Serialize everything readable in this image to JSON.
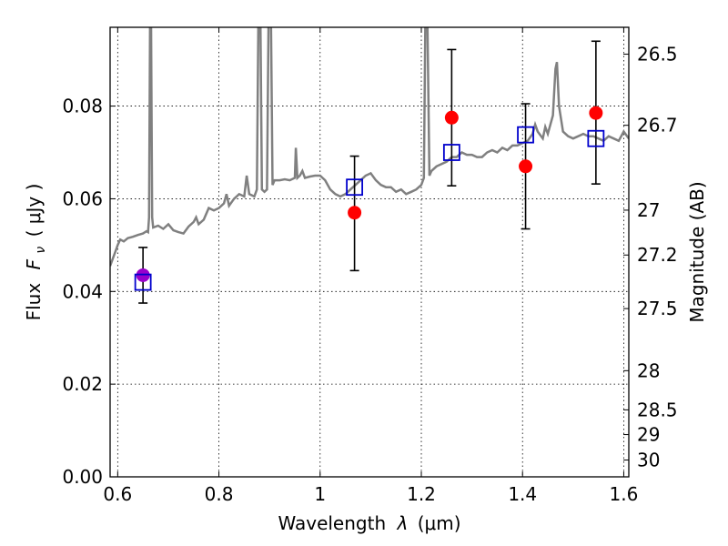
{
  "chart_data": {
    "type": "scatter",
    "xlabel_text": "Wavelength",
    "xlabel_symbol": "λ",
    "xlabel_unit": "(μm)",
    "ylabel_text": "Flux",
    "ylabel_symbol": "F",
    "ylabel_symbol_sub": "ν",
    "ylabel_unit": "( μJy )",
    "y2label": "Magnitude (AB)",
    "xlim": [
      0.585,
      1.61
    ],
    "ylim": [
      0.0,
      0.097
    ],
    "grid": true,
    "xticks": [
      {
        "value": 0.6,
        "label": "0.6"
      },
      {
        "value": 0.8,
        "label": "0.8"
      },
      {
        "value": 1.0,
        "label": "1"
      },
      {
        "value": 1.2,
        "label": "1.2"
      },
      {
        "value": 1.4,
        "label": "1.4"
      },
      {
        "value": 1.6,
        "label": "1.6"
      }
    ],
    "yticks": [
      {
        "value": 0.0,
        "label": "0.00"
      },
      {
        "value": 0.02,
        "label": "0.02"
      },
      {
        "value": 0.04,
        "label": "0.04"
      },
      {
        "value": 0.06,
        "label": "0.06"
      },
      {
        "value": 0.08,
        "label": "0.08"
      }
    ],
    "y2ticks": [
      {
        "mag": 26.5,
        "label": "26.5"
      },
      {
        "mag": 26.7,
        "label": "26.7"
      },
      {
        "mag": 27.0,
        "label": "27"
      },
      {
        "mag": 27.2,
        "label": "27.2"
      },
      {
        "mag": 27.5,
        "label": "27.5"
      },
      {
        "mag": 28.0,
        "label": "28"
      },
      {
        "mag": 28.5,
        "label": "28.5"
      },
      {
        "mag": 29.0,
        "label": "29"
      },
      {
        "mag": 30.0,
        "label": "30"
      }
    ],
    "model_spectrum": {
      "color": "#808080",
      "points": [
        [
          0.585,
          0.0455
        ],
        [
          0.595,
          0.0485
        ],
        [
          0.6,
          0.05
        ],
        [
          0.605,
          0.0512
        ],
        [
          0.612,
          0.0508
        ],
        [
          0.62,
          0.0515
        ],
        [
          0.63,
          0.0518
        ],
        [
          0.64,
          0.0522
        ],
        [
          0.65,
          0.0525
        ],
        [
          0.657,
          0.053
        ],
        [
          0.66,
          0.0528
        ],
        [
          0.662,
          0.056
        ],
        [
          0.664,
          0.098
        ],
        [
          0.666,
          0.098
        ],
        [
          0.668,
          0.056
        ],
        [
          0.67,
          0.0538
        ],
        [
          0.68,
          0.0542
        ],
        [
          0.69,
          0.0535
        ],
        [
          0.7,
          0.0545
        ],
        [
          0.71,
          0.0532
        ],
        [
          0.72,
          0.0528
        ],
        [
          0.73,
          0.0525
        ],
        [
          0.74,
          0.054
        ],
        [
          0.75,
          0.055
        ],
        [
          0.755,
          0.056
        ],
        [
          0.76,
          0.0545
        ],
        [
          0.77,
          0.0555
        ],
        [
          0.78,
          0.058
        ],
        [
          0.79,
          0.0575
        ],
        [
          0.8,
          0.058
        ],
        [
          0.81,
          0.059
        ],
        [
          0.815,
          0.061
        ],
        [
          0.82,
          0.0585
        ],
        [
          0.83,
          0.06
        ],
        [
          0.84,
          0.061
        ],
        [
          0.85,
          0.0605
        ],
        [
          0.855,
          0.065
        ],
        [
          0.86,
          0.061
        ],
        [
          0.87,
          0.0605
        ],
        [
          0.875,
          0.062
        ],
        [
          0.878,
          0.098
        ],
        [
          0.882,
          0.098
        ],
        [
          0.885,
          0.062
        ],
        [
          0.89,
          0.0615
        ],
        [
          0.895,
          0.062
        ],
        [
          0.898,
          0.098
        ],
        [
          0.903,
          0.098
        ],
        [
          0.906,
          0.063
        ],
        [
          0.91,
          0.064
        ],
        [
          0.92,
          0.064
        ],
        [
          0.93,
          0.0642
        ],
        [
          0.94,
          0.064
        ],
        [
          0.95,
          0.0645
        ],
        [
          0.952,
          0.071
        ],
        [
          0.955,
          0.0645
        ],
        [
          0.96,
          0.065
        ],
        [
          0.965,
          0.066
        ],
        [
          0.97,
          0.0645
        ],
        [
          0.98,
          0.0648
        ],
        [
          0.99,
          0.065
        ],
        [
          1.0,
          0.065
        ],
        [
          1.01,
          0.064
        ],
        [
          1.02,
          0.062
        ],
        [
          1.03,
          0.061
        ],
        [
          1.04,
          0.0605
        ],
        [
          1.05,
          0.061
        ],
        [
          1.06,
          0.062
        ],
        [
          1.07,
          0.063
        ],
        [
          1.08,
          0.064
        ],
        [
          1.09,
          0.065
        ],
        [
          1.1,
          0.0655
        ],
        [
          1.11,
          0.064
        ],
        [
          1.12,
          0.063
        ],
        [
          1.13,
          0.0625
        ],
        [
          1.14,
          0.0625
        ],
        [
          1.15,
          0.0615
        ],
        [
          1.16,
          0.062
        ],
        [
          1.17,
          0.061
        ],
        [
          1.18,
          0.0615
        ],
        [
          1.19,
          0.062
        ],
        [
          1.2,
          0.063
        ],
        [
          1.205,
          0.0645
        ],
        [
          1.208,
          0.098
        ],
        [
          1.212,
          0.098
        ],
        [
          1.216,
          0.065
        ],
        [
          1.22,
          0.066
        ],
        [
          1.23,
          0.067
        ],
        [
          1.24,
          0.0675
        ],
        [
          1.25,
          0.068
        ],
        [
          1.26,
          0.069
        ],
        [
          1.27,
          0.069
        ],
        [
          1.28,
          0.07
        ],
        [
          1.29,
          0.0695
        ],
        [
          1.3,
          0.0695
        ],
        [
          1.31,
          0.069
        ],
        [
          1.32,
          0.069
        ],
        [
          1.33,
          0.07
        ],
        [
          1.34,
          0.0705
        ],
        [
          1.35,
          0.07
        ],
        [
          1.36,
          0.071
        ],
        [
          1.37,
          0.0705
        ],
        [
          1.38,
          0.0715
        ],
        [
          1.39,
          0.0715
        ],
        [
          1.4,
          0.072
        ],
        [
          1.41,
          0.0725
        ],
        [
          1.42,
          0.074
        ],
        [
          1.425,
          0.076
        ],
        [
          1.43,
          0.0745
        ],
        [
          1.44,
          0.073
        ],
        [
          1.445,
          0.0755
        ],
        [
          1.45,
          0.074
        ],
        [
          1.46,
          0.078
        ],
        [
          1.465,
          0.088
        ],
        [
          1.468,
          0.0895
        ],
        [
          1.472,
          0.08
        ],
        [
          1.48,
          0.0745
        ],
        [
          1.49,
          0.0735
        ],
        [
          1.5,
          0.073
        ],
        [
          1.51,
          0.0735
        ],
        [
          1.52,
          0.074
        ],
        [
          1.53,
          0.0735
        ],
        [
          1.54,
          0.0735
        ],
        [
          1.55,
          0.073
        ],
        [
          1.56,
          0.0725
        ],
        [
          1.57,
          0.0735
        ],
        [
          1.58,
          0.073
        ],
        [
          1.59,
          0.0725
        ],
        [
          1.6,
          0.0745
        ],
        [
          1.61,
          0.073
        ]
      ]
    },
    "observed": {
      "color": "#ff0000",
      "points": [
        {
          "x": 0.65,
          "y": 0.0435,
          "yerr_low": 0.0375,
          "yerr_high": 0.0495
        },
        {
          "x": 1.068,
          "y": 0.057,
          "yerr_low": 0.0445,
          "yerr_high": 0.0692
        },
        {
          "x": 1.26,
          "y": 0.0775,
          "yerr_low": 0.0628,
          "yerr_high": 0.0922
        },
        {
          "x": 1.406,
          "y": 0.067,
          "yerr_low": 0.0535,
          "yerr_high": 0.0805
        },
        {
          "x": 1.545,
          "y": 0.0785,
          "yerr_low": 0.0632,
          "yerr_high": 0.094
        }
      ]
    },
    "model_band": {
      "color": "#0000cc",
      "points": [
        {
          "x": 0.65,
          "y": 0.042
        },
        {
          "x": 1.068,
          "y": 0.0625
        },
        {
          "x": 1.26,
          "y": 0.07
        },
        {
          "x": 1.406,
          "y": 0.0738
        },
        {
          "x": 1.545,
          "y": 0.073
        }
      ]
    },
    "overlap_color": "#9900cc"
  }
}
